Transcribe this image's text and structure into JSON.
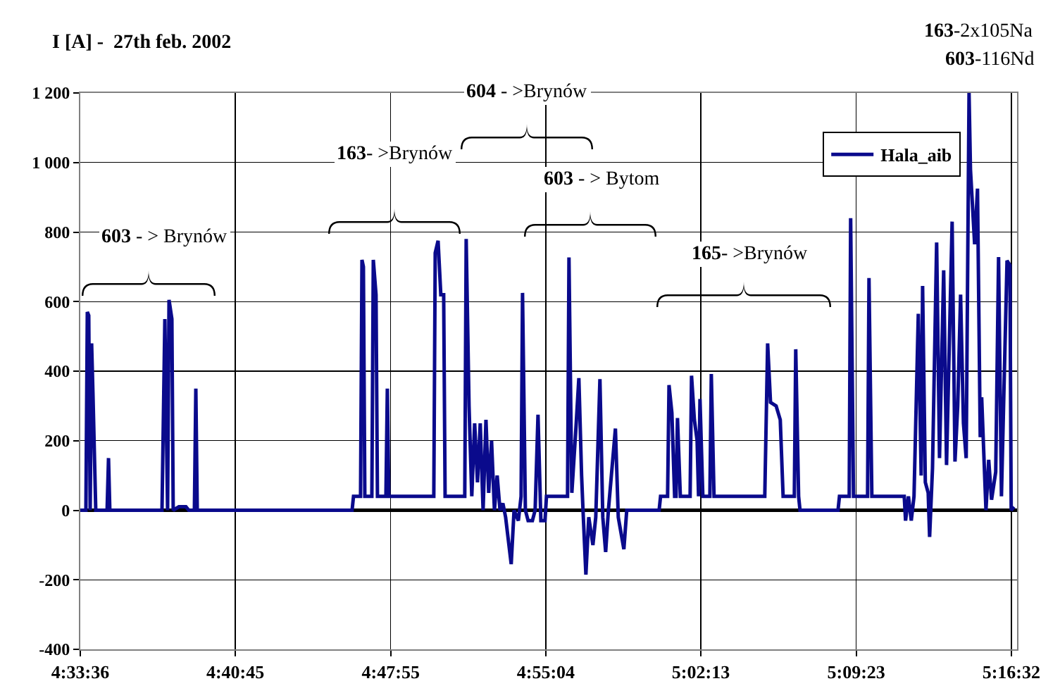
{
  "chart_data": {
    "type": "line",
    "ylabel": "I [A] -  27th feb. 2002",
    "annotations": [
      "603 - > Brynów",
      "163- >Brynów",
      "604 - >Brynów",
      "603 - > Bytom",
      "165- >Brynów",
      "163-2x105Na",
      "603-116Nd"
    ],
    "series": [
      {
        "name": "Hala_aib",
        "color": "#0a0a8c",
        "x": [
          4.56,
          4.5643,
          4.5654,
          4.5665,
          4.5676,
          4.5687,
          4.5697,
          4.5719,
          4.5806,
          4.5817,
          4.5827,
          4.6228,
          4.625,
          4.6271,
          4.6282,
          4.6304,
          4.6314,
          4.6358,
          4.6412,
          4.6434,
          4.6477,
          4.6488,
          4.6499,
          4.7689,
          4.77,
          4.7754,
          4.7765,
          4.7776,
          4.7787,
          4.7841,
          4.7852,
          4.7873,
          4.7884,
          4.7949,
          4.796,
          4.7971,
          4.8317,
          4.8328,
          4.835,
          4.8371,
          4.8393,
          4.8404,
          4.8555,
          4.8566,
          4.8588,
          4.8609,
          4.8631,
          4.8653,
          4.8674,
          4.8696,
          4.8718,
          4.8739,
          4.8761,
          4.8783,
          4.8804,
          4.8826,
          4.8848,
          4.8869,
          4.8912,
          4.8934,
          4.8967,
          4.8988,
          4.8999,
          4.9021,
          4.9042,
          4.9075,
          4.9096,
          4.9118,
          4.914,
          4.9172,
          4.9183,
          4.9345,
          4.9356,
          4.9378,
          4.941,
          4.9432,
          4.9453,
          4.9464,
          4.9486,
          4.9508,
          4.954,
          4.9562,
          4.9594,
          4.9616,
          4.9638,
          4.9659,
          4.9713,
          4.9735,
          4.9778,
          4.98,
          5.0049,
          5.006,
          5.0114,
          5.0125,
          5.0147,
          5.0168,
          5.0179,
          5.019,
          5.0212,
          5.0287,
          5.0298,
          5.032,
          5.0341,
          5.0352,
          5.0363,
          5.0385,
          5.0439,
          5.045,
          5.0471,
          5.0861,
          5.0883,
          5.0905,
          5.0948,
          5.098,
          5.1002,
          5.1088,
          5.1099,
          5.1121,
          5.1132,
          5.1424,
          5.1435,
          5.151,
          5.1521,
          5.1543,
          5.1651,
          5.1662,
          5.1684,
          5.1933,
          5.1943,
          5.1965,
          5.1987,
          5.2008,
          5.2041,
          5.2063,
          5.2074,
          5.2095,
          5.2117,
          5.2128,
          5.215,
          5.2182,
          5.2204,
          5.2236,
          5.2258,
          5.2301,
          5.2323,
          5.2344,
          5.2366,
          5.2388,
          5.2409,
          5.2431,
          5.2442,
          5.2474,
          5.2496,
          5.2517,
          5.2528,
          5.2561,
          5.2582,
          5.2604,
          5.2636,
          5.2658,
          5.268,
          5.2723,
          5.2745,
          5.2755,
          5.2777
        ],
        "values": [
          0,
          0,
          570,
          560,
          0,
          480,
          340,
          0,
          0,
          150,
          0,
          0,
          550,
          0,
          605,
          550,
          0,
          10,
          10,
          0,
          0,
          350,
          0,
          0,
          40,
          40,
          720,
          700,
          40,
          40,
          720,
          620,
          40,
          40,
          350,
          40,
          40,
          740,
          775,
          620,
          620,
          40,
          40,
          780,
          300,
          40,
          250,
          80,
          250,
          0,
          260,
          50,
          200,
          0,
          100,
          0,
          20,
          -20,
          -155,
          0,
          -30,
          40,
          625,
          0,
          -30,
          -30,
          0,
          275,
          -30,
          -30,
          40,
          40,
          727,
          50,
          240,
          380,
          100,
          0,
          -185,
          -20,
          -100,
          -20,
          377,
          -20,
          -120,
          0,
          235,
          -20,
          -112,
          0,
          0,
          40,
          40,
          360,
          280,
          40,
          40,
          265,
          40,
          40,
          387,
          260,
          200,
          40,
          320,
          40,
          40,
          392,
          40,
          40,
          480,
          310,
          300,
          260,
          40,
          40,
          463,
          40,
          0,
          0,
          40,
          40,
          840,
          40,
          40,
          668,
          40,
          40,
          -30,
          40,
          -30,
          40,
          565,
          100,
          645,
          80,
          50,
          -77,
          120,
          770,
          150,
          690,
          130,
          830,
          140,
          300,
          620,
          250,
          150,
          1200,
          980,
          765,
          925,
          210,
          325,
          0,
          145,
          30,
          110,
          728,
          40,
          718,
          705,
          0,
          10
        ]
      }
    ],
    "xlim": [
      4.56,
      5.28
    ],
    "xticks": [
      {
        "value": 4.56,
        "label": "4:33:36"
      },
      {
        "value": 4.679167,
        "label": "4:40:45"
      },
      {
        "value": 4.798611,
        "label": "4:47:55"
      },
      {
        "value": 4.917778,
        "label": "4:55:04"
      },
      {
        "value": 5.036944,
        "label": "5:02:13"
      },
      {
        "value": 5.156389,
        "label": "5:09:23"
      },
      {
        "value": 5.275556,
        "label": "5:16:32"
      }
    ],
    "ylim": [
      -400,
      1200
    ],
    "yticks": [
      -400,
      -200,
      0,
      200,
      400,
      600,
      800,
      {
        "value": 1000,
        "label": "1 000"
      },
      {
        "value": 1200,
        "label": "1 200"
      }
    ],
    "grid": true,
    "legend": "top right",
    "line_style": "solid"
  }
}
